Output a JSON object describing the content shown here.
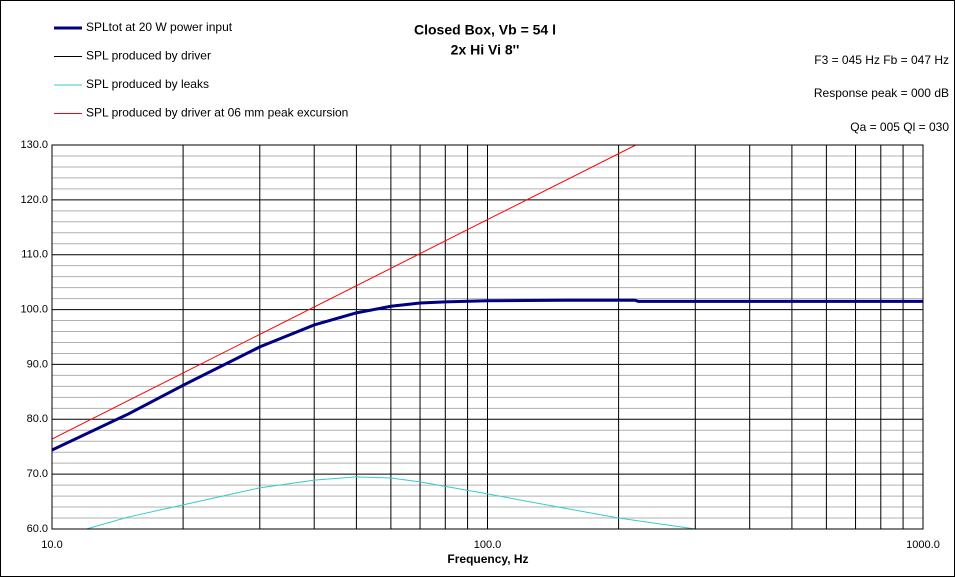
{
  "chart_data": {
    "type": "line",
    "title": "Closed Box, Vb = 54 l",
    "subtitle": "2x Hi Vi 8''",
    "annotations": [
      "F3 = 045 Hz  Fb = 047 Hz",
      "Response peak = 000 dB",
      "Qa = 005  Ql = 030"
    ],
    "x_label": "Frequency, Hz",
    "log_x": true,
    "xlim": [
      10,
      1000
    ],
    "xticks": [
      {
        "value": 10,
        "label": "10.0"
      },
      {
        "value": 100,
        "label": "100.0"
      },
      {
        "value": 1000,
        "label": "1000.0"
      }
    ],
    "xminor": [
      20,
      30,
      40,
      50,
      60,
      70,
      80,
      90,
      200,
      300,
      400,
      500,
      600,
      700,
      800,
      900
    ],
    "ylim": [
      60,
      130
    ],
    "yticks": [
      {
        "value": 60,
        "label": "60.0"
      },
      {
        "value": 70,
        "label": "70.0"
      },
      {
        "value": 80,
        "label": "80.0"
      },
      {
        "value": 90,
        "label": "90.0"
      },
      {
        "value": 100,
        "label": "100.0"
      },
      {
        "value": 110,
        "label": "110.0"
      },
      {
        "value": 120,
        "label": "120.0"
      },
      {
        "value": 130,
        "label": "130.0"
      }
    ],
    "yminor": [
      62,
      64,
      66,
      68,
      72,
      74,
      76,
      78,
      82,
      84,
      86,
      88,
      92,
      94,
      96,
      98,
      102,
      104,
      106,
      108,
      112,
      114,
      116,
      118,
      122,
      124,
      126,
      128
    ],
    "grid": true,
    "series": [
      {
        "name": "SPLtot at 20 W power input",
        "color": "#000080",
        "width": 3,
        "x": [
          10,
          15,
          20,
          30,
          40,
          50,
          60,
          70,
          80,
          100,
          150,
          218,
          222,
          1000
        ],
        "values": [
          74.4,
          81.0,
          86.2,
          93.2,
          97.2,
          99.4,
          100.6,
          101.2,
          101.4,
          101.6,
          101.7,
          101.7,
          101.5,
          101.5
        ]
      },
      {
        "name": "SPL produced by driver",
        "color": "#000000",
        "width": 1,
        "x": [
          10,
          15,
          20,
          30,
          40,
          50,
          60,
          70,
          80,
          100,
          150,
          218,
          222,
          1000
        ],
        "values": [
          74.4,
          81.0,
          86.2,
          93.2,
          97.2,
          99.4,
          100.6,
          101.2,
          101.4,
          101.6,
          101.7,
          101.7,
          101.5,
          101.5
        ]
      },
      {
        "name": "SPL produced by leaks",
        "color": "#33cccc",
        "width": 1,
        "x": [
          12,
          15,
          20,
          30,
          40,
          50,
          60,
          70,
          100,
          150,
          200,
          300
        ],
        "values": [
          60.0,
          62.2,
          64.4,
          67.5,
          68.9,
          69.5,
          69.3,
          68.6,
          66.4,
          63.8,
          62.0,
          60.0
        ]
      },
      {
        "name": "SPL produced by driver at 06 mm peak excursion",
        "color": "#ff0000",
        "width": 1,
        "x": [
          10,
          100,
          219
        ],
        "values": [
          76.4,
          116.4,
          130.0
        ]
      }
    ]
  }
}
